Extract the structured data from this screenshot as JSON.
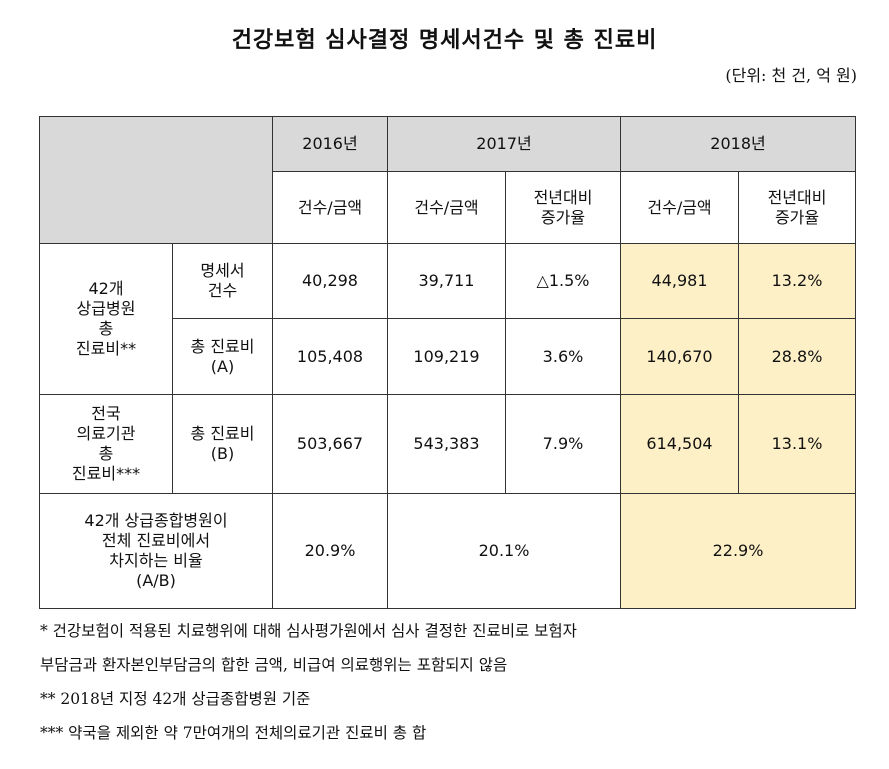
{
  "title": "건강보험 심사결정 명세서건수 및 총 진료비",
  "unit": "(단위: 천 건, 억 원)",
  "header": {
    "years": [
      "2016년",
      "2017년",
      "2018년"
    ],
    "count_amount": "건수/금액",
    "yoy": "전년대비\n증가율"
  },
  "rows": {
    "group1_label": "42개\n상급병원\n총\n진료비**",
    "group2_label": "전국\n의료기관\n총\n진료비***",
    "r1": {
      "label": "명세서\n건수",
      "v2016": "40,298",
      "v2017": "39,711",
      "g2017": "△1.5%",
      "v2018": "44,981",
      "g2018": "13.2%"
    },
    "r2": {
      "label": "총 진료비\n(A)",
      "v2016": "105,408",
      "v2017": "109,219",
      "g2017": "3.6%",
      "v2018": "140,670",
      "g2018": "28.8%"
    },
    "r3": {
      "label": "총 진료비\n(B)",
      "v2016": "503,667",
      "v2017": "543,383",
      "g2017": "7.9%",
      "v2018": "614,504",
      "g2018": "13.1%"
    },
    "r4": {
      "label": "42개 상급종합병원이\n전체 진료비에서\n차지하는 비율\n(A/B)",
      "v2016": "20.9%",
      "v2017": "20.1%",
      "v2018": "22.9%"
    }
  },
  "footnotes": [
    "* 건강보험이 적용된 치료행위에 대해 심사평가원에서 심사 결정한 진료비로 보험자",
    "부담금과 환자본인부담금의 합한 금액, 비급여 의료행위는 포함되지 않음",
    "** 2018년 지정 42개 상급종합병원 기준",
    "*** 약국을 제외한 약 7만여개의 전체의료기관 진료비 총 합"
  ],
  "colors": {
    "header_bg": "#d9d9d9",
    "highlight_bg": "#fdf0c7",
    "border": "#333333"
  }
}
